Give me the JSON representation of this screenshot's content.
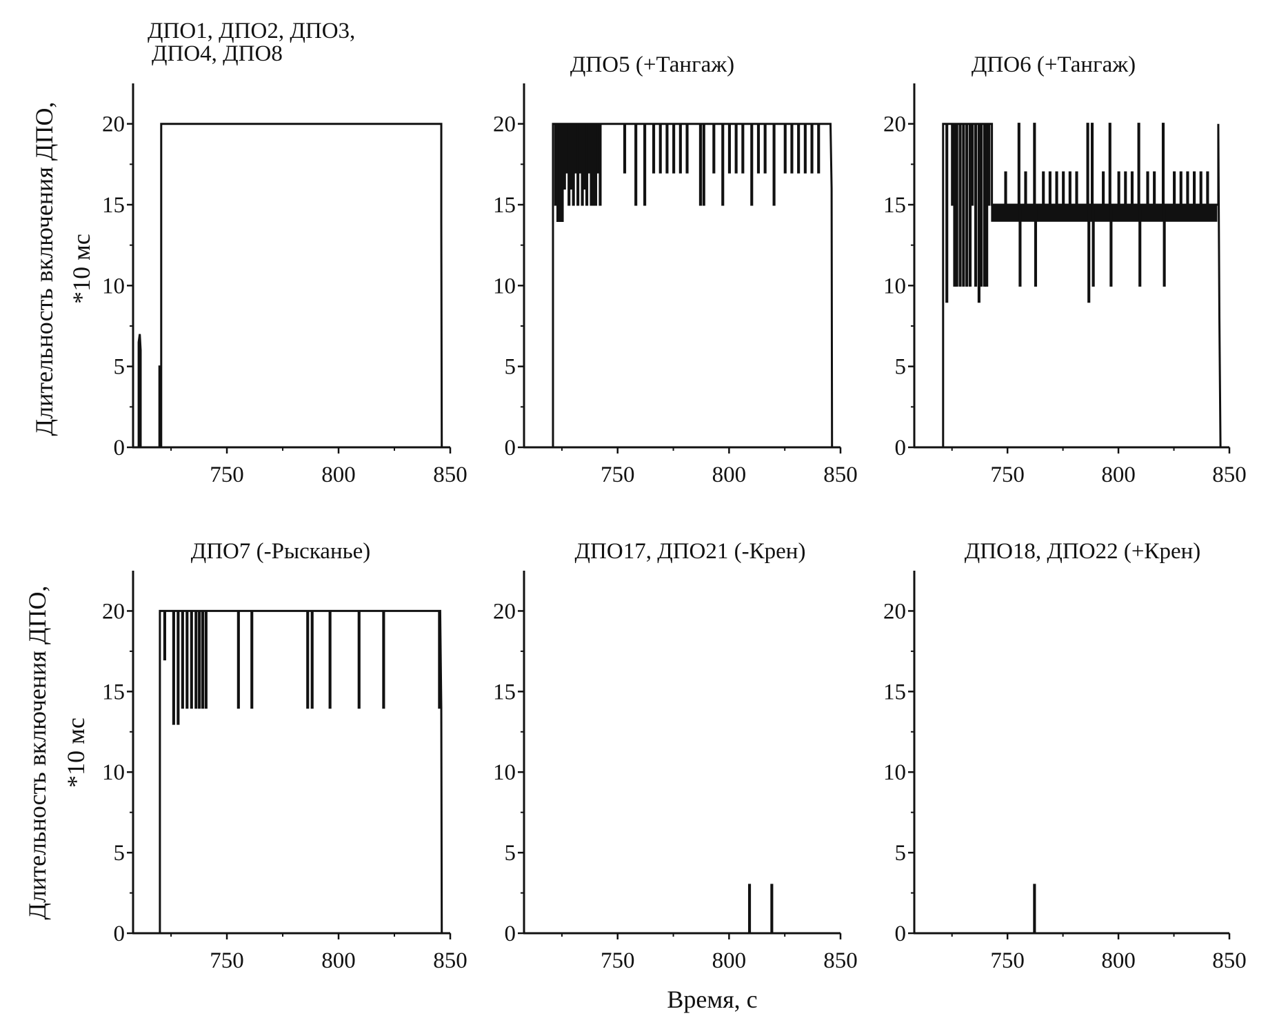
{
  "chart_data": {
    "type": "line",
    "xlabel": "Время, с",
    "ylabel_line1": "Длительность включения ДПО,",
    "ylabel_line2": "*10 мс",
    "xlim": [
      708,
      850
    ],
    "ylim": [
      0,
      22.5
    ],
    "xticks": [
      750,
      800,
      850
    ],
    "xminor": [
      725,
      775,
      825
    ],
    "yticks": [
      0,
      5,
      10,
      15,
      20
    ],
    "yminor": [
      2.5,
      7.5,
      12.5,
      17.5
    ],
    "colors": {
      "line": "#111111",
      "axis": "#111111"
    },
    "panels": [
      {
        "title": [
          "ДПО1, ДПО2, ДПО3,",
          "ДПО4, ДПО8"
        ],
        "lines": [
          [
            [
              710.5,
              0
            ],
            [
              710.5,
              6.5
            ],
            [
              711,
              7
            ],
            [
              711.4,
              6
            ],
            [
              711.4,
              0
            ]
          ],
          [
            [
              719.8,
              0
            ],
            [
              719.8,
              5
            ],
            [
              720.1,
              5
            ],
            [
              720.1,
              0
            ]
          ],
          [
            [
              720.6,
              0
            ],
            [
              720.6,
              20
            ],
            [
              846,
              20
            ],
            [
              846,
              14
            ],
            [
              846.2,
              0
            ]
          ]
        ],
        "spikes": [],
        "bands": []
      },
      {
        "title": [
          "ДПО5 (+Тангаж)"
        ],
        "lines": [
          [
            [
              721,
              0
            ],
            [
              721,
              20
            ],
            [
              845.5,
              20
            ],
            [
              846,
              16
            ],
            [
              846.2,
              0
            ]
          ]
        ],
        "spikes": [
          {
            "base": 20,
            "items": [
              [
                722,
                15
              ],
              [
                723,
                14
              ],
              [
                724,
                14
              ],
              [
                725,
                14
              ],
              [
                726,
                16
              ],
              [
                727,
                17
              ],
              [
                728,
                15
              ],
              [
                729,
                16
              ],
              [
                730,
                15
              ],
              [
                731,
                17
              ],
              [
                732,
                15
              ],
              [
                733,
                17
              ],
              [
                734,
                15
              ],
              [
                735,
                16
              ],
              [
                736,
                15
              ],
              [
                737,
                17
              ],
              [
                738,
                15
              ],
              [
                739,
                15
              ],
              [
                740,
                15
              ],
              [
                741,
                17
              ],
              [
                742,
                15
              ],
              [
                753,
                17
              ],
              [
                758,
                15
              ],
              [
                762,
                15
              ],
              [
                766,
                17
              ],
              [
                769,
                17
              ],
              [
                772,
                17
              ],
              [
                775,
                17
              ],
              [
                778,
                17
              ],
              [
                781,
                17
              ],
              [
                787,
                15
              ],
              [
                788.5,
                15
              ],
              [
                793,
                17
              ],
              [
                797,
                15
              ],
              [
                800,
                17
              ],
              [
                803,
                17
              ],
              [
                806,
                17
              ],
              [
                810,
                15
              ],
              [
                813,
                17
              ],
              [
                816,
                17
              ],
              [
                820,
                15
              ],
              [
                825,
                17
              ],
              [
                828,
                17
              ],
              [
                831,
                17
              ],
              [
                834,
                17
              ],
              [
                837,
                17
              ],
              [
                840,
                17
              ]
            ]
          }
        ],
        "bands": []
      },
      {
        "title": [
          "ДПО6 (+Тангаж)"
        ],
        "lines": [
          [
            [
              721,
              0
            ],
            [
              721,
              20
            ],
            [
              743,
              20
            ],
            [
              743,
              15
            ],
            [
              845,
              15
            ],
            [
              845,
              20
            ],
            [
              845.5,
              8
            ],
            [
              846,
              0
            ]
          ]
        ],
        "spikes": [
          {
            "base": 20,
            "items": [
              [
                722.5,
                9
              ],
              [
                725,
                15
              ],
              [
                726,
                10
              ],
              [
                727,
                10
              ],
              [
                728.5,
                10
              ],
              [
                730,
                10
              ],
              [
                731.5,
                10
              ],
              [
                733,
                10
              ],
              [
                734,
                15
              ],
              [
                735.5,
                10
              ],
              [
                737,
                9
              ],
              [
                738,
                10
              ],
              [
                739.5,
                10
              ],
              [
                740.5,
                10
              ],
              [
                741.5,
                15
              ]
            ]
          },
          {
            "base": 15,
            "items": [
              [
                749,
                17
              ],
              [
                755,
                20
              ],
              [
                758,
                17
              ],
              [
                762,
                20
              ],
              [
                766,
                17
              ],
              [
                769,
                17
              ],
              [
                772,
                17
              ],
              [
                775,
                17
              ],
              [
                778,
                17
              ],
              [
                781,
                17
              ],
              [
                786,
                20
              ],
              [
                788,
                20
              ],
              [
                793,
                17
              ],
              [
                796,
                20
              ],
              [
                800,
                17
              ],
              [
                803,
                17
              ],
              [
                806,
                17
              ],
              [
                809,
                20
              ],
              [
                813,
                17
              ],
              [
                816,
                17
              ],
              [
                820,
                20
              ],
              [
                825,
                17
              ],
              [
                828,
                17
              ],
              [
                831,
                17
              ],
              [
                834,
                17
              ],
              [
                837,
                17
              ],
              [
                840,
                17
              ]
            ]
          },
          {
            "base": 15,
            "items": [
              [
                755.5,
                10
              ],
              [
                762.5,
                10
              ],
              [
                786.5,
                9
              ],
              [
                788.5,
                10
              ],
              [
                796.5,
                10
              ],
              [
                809.5,
                10
              ],
              [
                820.5,
                10
              ]
            ]
          }
        ],
        "bands": [
          {
            "from": 743,
            "to": 844,
            "low": 14,
            "high": 15,
            "period": 0.7
          }
        ]
      },
      {
        "title": [
          "ДПО7 (-Рысканье)"
        ],
        "lines": [
          [
            [
              720,
              0
            ],
            [
              720,
              20
            ],
            [
              845.5,
              20
            ],
            [
              846,
              14
            ],
            [
              846.2,
              0
            ]
          ]
        ],
        "spikes": [
          {
            "base": 20,
            "items": [
              [
                722,
                17
              ],
              [
                726,
                13
              ],
              [
                728,
                13
              ],
              [
                730,
                14
              ],
              [
                732,
                14
              ],
              [
                734,
                14
              ],
              [
                736,
                14
              ],
              [
                737.5,
                14
              ],
              [
                739,
                14
              ],
              [
                740.5,
                14
              ],
              [
                755,
                14
              ],
              [
                761,
                14
              ],
              [
                786,
                14
              ],
              [
                788,
                14
              ],
              [
                796,
                14
              ],
              [
                809,
                14
              ],
              [
                820,
                14
              ],
              [
                845,
                14
              ]
            ]
          }
        ],
        "bands": []
      },
      {
        "title": [
          "ДПО17, ДПО21 (-Крен)"
        ],
        "lines": [],
        "spikes": [
          {
            "base": 0,
            "items": [
              [
                809,
                3
              ],
              [
                819,
                3
              ]
            ]
          }
        ],
        "bands": []
      },
      {
        "title": [
          "ДПО18, ДПО22 (+Крен)"
        ],
        "lines": [],
        "spikes": [
          {
            "base": 0,
            "items": [
              [
                762,
                3
              ]
            ]
          }
        ],
        "bands": []
      }
    ]
  }
}
